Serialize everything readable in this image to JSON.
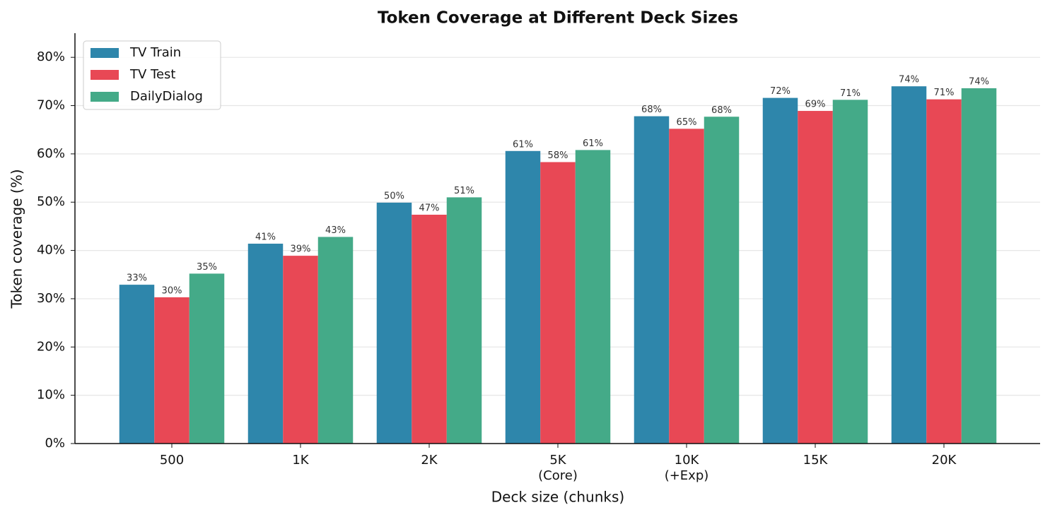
{
  "chart_data": {
    "type": "bar",
    "title": "Token Coverage at Different Deck Sizes",
    "x_label": "Deck size (chunks)",
    "y_label": "Token coverage (%)",
    "categories": [
      "500",
      "1K",
      "2K",
      "5K\n(Core)",
      "10K\n(+Exp)",
      "15K",
      "20K"
    ],
    "series": [
      {
        "name": "TV Train",
        "color": "#2e86ab",
        "values": [
          32.9,
          41.4,
          49.9,
          60.6,
          67.8,
          71.6,
          74.0
        ],
        "value_labels": [
          "33%",
          "41%",
          "50%",
          "61%",
          "68%",
          "72%",
          "74%"
        ]
      },
      {
        "name": "TV Test",
        "color": "#e84855",
        "values": [
          30.3,
          38.9,
          47.4,
          58.3,
          65.2,
          68.9,
          71.3
        ],
        "value_labels": [
          "30%",
          "39%",
          "47%",
          "58%",
          "65%",
          "69%",
          "71%"
        ]
      },
      {
        "name": "DailyDialog",
        "color": "#44aa88",
        "values": [
          35.2,
          42.8,
          51.0,
          60.8,
          67.7,
          71.2,
          73.6
        ],
        "value_labels": [
          "35%",
          "43%",
          "51%",
          "61%",
          "68%",
          "71%",
          "74%"
        ]
      }
    ],
    "ylim": [
      0,
      85
    ],
    "yticks": [
      {
        "value": 0,
        "label": "0%"
      },
      {
        "value": 10,
        "label": "10%"
      },
      {
        "value": 20,
        "label": "20%"
      },
      {
        "value": 30,
        "label": "30%"
      },
      {
        "value": 40,
        "label": "40%"
      },
      {
        "value": 50,
        "label": "50%"
      },
      {
        "value": 60,
        "label": "60%"
      },
      {
        "value": 70,
        "label": "70%"
      },
      {
        "value": 80,
        "label": "80%"
      }
    ],
    "grid": true,
    "legend": "upper left"
  }
}
